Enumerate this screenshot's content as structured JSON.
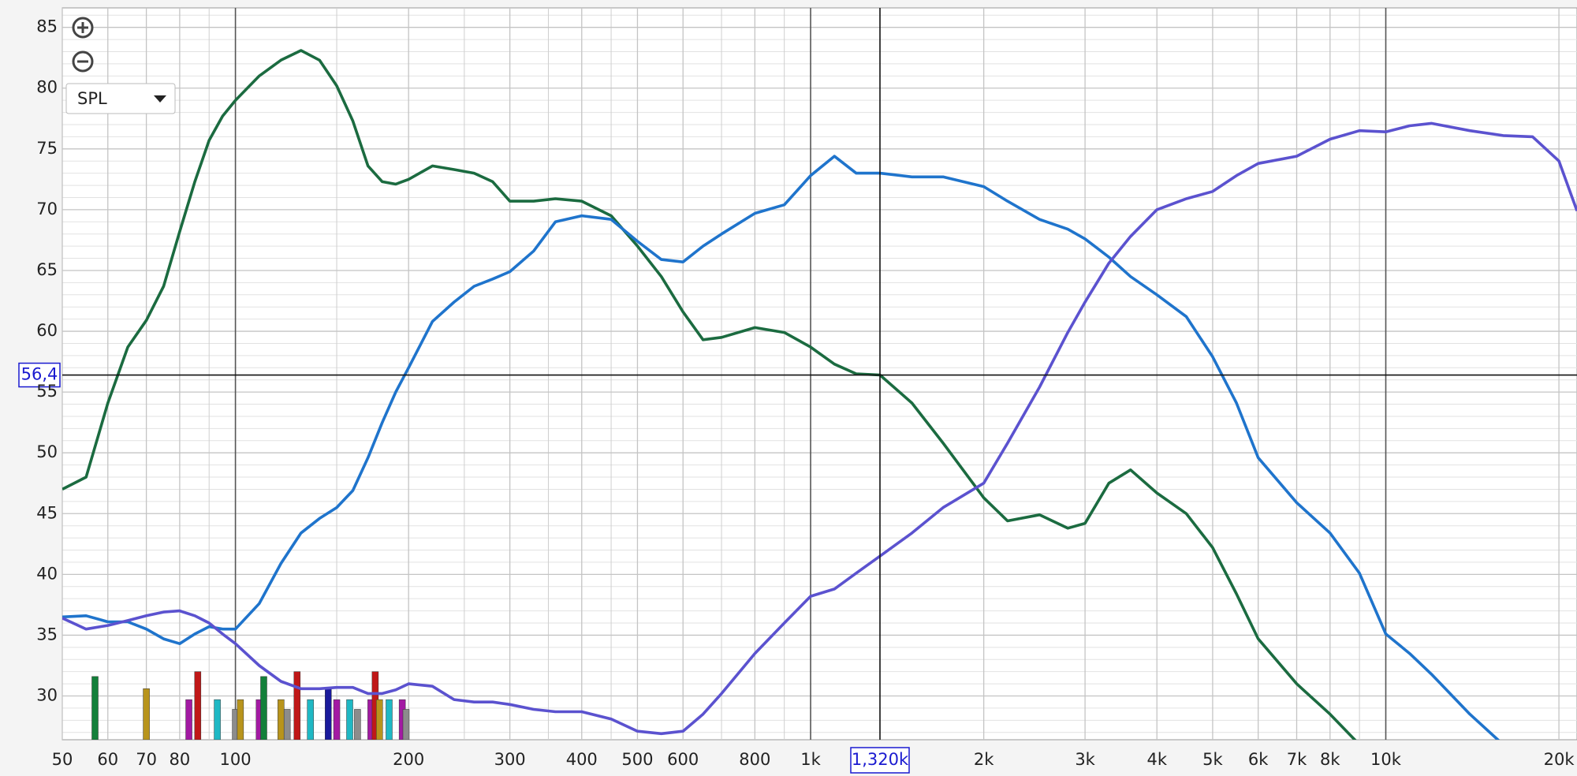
{
  "chart_data": {
    "type": "line",
    "log_x": true,
    "grid": true,
    "xlim": [
      50,
      21500
    ],
    "ylim": [
      26.4,
      86.6
    ],
    "xticks": [
      50,
      60,
      70,
      80,
      100,
      200,
      300,
      400,
      500,
      600,
      800,
      {
        "value": 1000,
        "label": "1k"
      },
      {
        "value": 2000,
        "label": "2k"
      },
      {
        "value": 3000,
        "label": "3k"
      },
      {
        "value": 4000,
        "label": "4k"
      },
      {
        "value": 5000,
        "label": "5k"
      },
      {
        "value": 6000,
        "label": "6k"
      },
      {
        "value": 7000,
        "label": "7k"
      },
      {
        "value": 8000,
        "label": "8k"
      },
      {
        "value": 10000,
        "label": "10k"
      },
      {
        "value": 20000,
        "label": "20k"
      }
    ],
    "xminor": [
      90,
      150,
      250,
      350,
      450,
      700,
      900,
      9000
    ],
    "yticks": [
      30,
      35,
      40,
      45,
      50,
      55,
      60,
      65,
      70,
      75,
      80,
      85
    ],
    "yminor": [
      27,
      28,
      29,
      31,
      32,
      33,
      34,
      36,
      37,
      38,
      39,
      41,
      42,
      43,
      44,
      46,
      47,
      48,
      49,
      51,
      52,
      53,
      54,
      56,
      57,
      58,
      59,
      61,
      62,
      63,
      64,
      66,
      67,
      68,
      69,
      71,
      72,
      73,
      74,
      76,
      77,
      78,
      79,
      81,
      82,
      83,
      84,
      86
    ],
    "x": [
      50,
      55,
      60,
      65,
      70,
      75,
      80,
      85,
      90,
      95,
      100,
      110,
      120,
      130,
      140,
      150,
      160,
      170,
      180,
      190,
      200,
      220,
      240,
      260,
      280,
      300,
      330,
      360,
      400,
      450,
      500,
      550,
      600,
      650,
      700,
      800,
      900,
      1000,
      1100,
      1200,
      1320,
      1500,
      1700,
      2000,
      2200,
      2500,
      2800,
      3000,
      3300,
      3600,
      4000,
      4500,
      5000,
      5500,
      6000,
      7000,
      8000,
      9000,
      10000,
      11000,
      12000,
      14000,
      16000,
      18000,
      20000,
      21500
    ],
    "series": [
      {
        "color": "#1b6b40",
        "values": [
          47.0,
          48.0,
          54.1,
          58.7,
          60.9,
          63.7,
          68.2,
          72.3,
          75.7,
          77.7,
          79.0,
          81.0,
          82.3,
          83.1,
          82.3,
          80.2,
          77.3,
          73.6,
          72.3,
          72.1,
          72.5,
          73.6,
          73.3,
          73.0,
          72.3,
          70.7,
          70.7,
          70.9,
          70.7,
          69.5,
          67.0,
          64.5,
          61.6,
          59.3,
          59.5,
          60.3,
          59.9,
          58.7,
          57.3,
          56.5,
          56.4,
          54.1,
          50.8,
          46.3,
          44.4,
          44.9,
          43.8,
          44.2,
          47.5,
          48.6,
          46.7,
          45.0,
          42.2,
          38.4,
          34.7,
          31.0,
          28.5,
          26.0,
          null,
          null,
          null,
          null,
          null,
          null,
          null,
          null
        ]
      },
      {
        "color": "#1f74cc",
        "values": [
          36.5,
          36.6,
          36.1,
          36.1,
          35.5,
          34.7,
          34.3,
          35.1,
          35.7,
          35.5,
          35.5,
          37.6,
          40.9,
          43.4,
          44.6,
          45.5,
          46.9,
          49.6,
          52.5,
          55.0,
          57.0,
          60.8,
          62.4,
          63.7,
          64.3,
          64.9,
          66.6,
          69.0,
          69.5,
          69.2,
          67.4,
          65.9,
          65.7,
          67.0,
          68.0,
          69.7,
          70.4,
          72.8,
          74.4,
          73.0,
          73.0,
          72.7,
          72.7,
          71.9,
          70.7,
          69.2,
          68.4,
          67.6,
          66.1,
          64.5,
          63.0,
          61.2,
          57.9,
          54.1,
          49.6,
          45.9,
          43.4,
          40.1,
          35.1,
          33.5,
          31.8,
          28.5,
          26.0,
          null,
          null,
          null
        ]
      },
      {
        "color": "#5b52cf",
        "values": [
          36.4,
          35.5,
          35.8,
          36.2,
          36.6,
          36.9,
          37.0,
          36.6,
          36.0,
          35.1,
          34.3,
          32.5,
          31.2,
          30.6,
          30.6,
          30.7,
          30.7,
          30.2,
          30.2,
          30.5,
          31.0,
          30.8,
          29.7,
          29.5,
          29.5,
          29.3,
          28.9,
          28.7,
          28.7,
          28.1,
          27.1,
          26.9,
          27.1,
          28.5,
          30.2,
          33.5,
          36.0,
          38.2,
          38.8,
          40.1,
          41.5,
          43.4,
          45.5,
          47.5,
          50.8,
          55.4,
          59.9,
          62.4,
          65.6,
          67.8,
          70.0,
          70.9,
          71.5,
          72.8,
          73.8,
          74.4,
          75.8,
          76.5,
          76.4,
          76.9,
          77.1,
          76.5,
          76.1,
          76.0,
          74.0,
          69.9
        ]
      }
    ],
    "bars": {
      "x": [
        57,
        70,
        83,
        86,
        93,
        100,
        102,
        110,
        112,
        120,
        123,
        128,
        135,
        145,
        150,
        158,
        163,
        172,
        175,
        178,
        185,
        195,
        198
      ],
      "values": [
        31.6,
        30.6,
        29.7,
        32.0,
        29.7,
        28.9,
        29.7,
        29.7,
        31.6,
        29.7,
        28.9,
        32.0,
        29.7,
        30.6,
        29.7,
        29.7,
        28.9,
        29.7,
        32.0,
        29.7,
        29.7,
        29.7,
        28.9
      ],
      "colors": [
        "#13803a",
        "#b8941c",
        "#a31aa3",
        "#c01818",
        "#1fb8c4",
        "#8c8c8c",
        "#b8941c",
        "#a31aa3",
        "#13803a",
        "#b8941c",
        "#8c8c8c",
        "#c01818",
        "#1fb8c4",
        "#1a1a9c",
        "#a31aa3",
        "#1fb8c4",
        "#8c8c8c",
        "#a31aa3",
        "#c01818",
        "#b8941c",
        "#1fb8c4",
        "#a31aa3",
        "#8c8c8c"
      ]
    },
    "cursor": {
      "x": {
        "value": 1320,
        "label": "1,320k"
      },
      "y": {
        "value": 56.4,
        "label": "56,4"
      }
    },
    "selector": "SPL"
  }
}
